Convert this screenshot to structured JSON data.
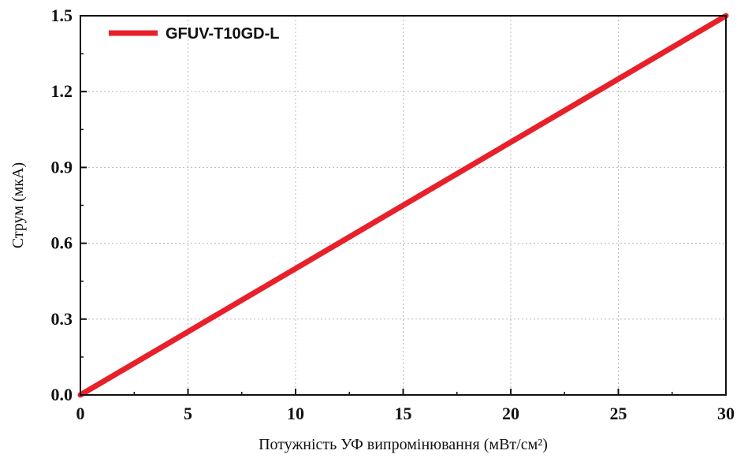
{
  "chart_data": {
    "type": "line",
    "xlabel": "Потужність УФ випромінювання (мВт/см²)",
    "ylabel": "Струм (мкА)",
    "xlim": [
      0,
      30
    ],
    "ylim": [
      0,
      1.5
    ],
    "x_ticks": [
      "0",
      "5",
      "10",
      "15",
      "20",
      "25",
      "30"
    ],
    "y_ticks": [
      "0.0",
      "0.3",
      "0.6",
      "0.9",
      "1.2",
      "1.5"
    ],
    "grid": true,
    "legend_position": "top-left",
    "series": [
      {
        "name": "GFUV-T10GD-L",
        "color": "#e8202a",
        "x": [
          0,
          30
        ],
        "y": [
          0,
          1.5
        ]
      }
    ]
  }
}
